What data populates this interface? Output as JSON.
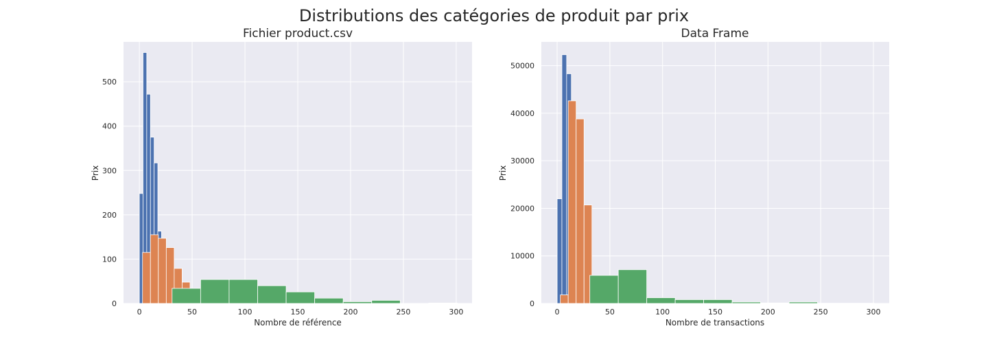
{
  "figure_title": "Distributions des catégories de produit par prix",
  "chart_data": [
    {
      "type": "bar",
      "title": "Fichier product.csv",
      "xlabel": "Nombre de référence",
      "ylabel": "Prix",
      "xlim": [
        -15,
        315
      ],
      "ylim": [
        0,
        590
      ],
      "xticks": [
        0,
        50,
        100,
        150,
        200,
        250,
        300
      ],
      "yticks": [
        0,
        100,
        200,
        300,
        400,
        500
      ],
      "grid": true,
      "series": [
        {
          "color": "#4c72b0",
          "bins": [
            {
              "x0": 0,
              "x1": 3.5,
              "value": 248
            },
            {
              "x0": 3.5,
              "x1": 7,
              "value": 566
            },
            {
              "x0": 7,
              "x1": 10.5,
              "value": 472
            },
            {
              "x0": 10.5,
              "x1": 14,
              "value": 375
            },
            {
              "x0": 14,
              "x1": 17.5,
              "value": 317
            },
            {
              "x0": 17.5,
              "x1": 21,
              "value": 163
            }
          ]
        },
        {
          "color": "#dd8452",
          "bins": [
            {
              "x0": 3,
              "x1": 10.5,
              "value": 115
            },
            {
              "x0": 10.5,
              "x1": 18,
              "value": 155
            },
            {
              "x0": 18,
              "x1": 25.5,
              "value": 147
            },
            {
              "x0": 25.5,
              "x1": 33,
              "value": 126
            },
            {
              "x0": 33,
              "x1": 40.5,
              "value": 79
            },
            {
              "x0": 40.5,
              "x1": 48,
              "value": 48
            },
            {
              "x0": 48,
              "x1": 55.5,
              "value": 25
            }
          ]
        },
        {
          "color": "#55a868",
          "bins": [
            {
              "x0": 31,
              "x1": 58,
              "value": 34
            },
            {
              "x0": 58,
              "x1": 85,
              "value": 54
            },
            {
              "x0": 85,
              "x1": 112,
              "value": 54
            },
            {
              "x0": 112,
              "x1": 139,
              "value": 40
            },
            {
              "x0": 139,
              "x1": 166,
              "value": 26
            },
            {
              "x0": 166,
              "x1": 193,
              "value": 12
            },
            {
              "x0": 193,
              "x1": 220,
              "value": 4
            },
            {
              "x0": 220,
              "x1": 247,
              "value": 7
            },
            {
              "x0": 247,
              "x1": 274,
              "value": 0
            },
            {
              "x0": 274,
              "x1": 301,
              "value": 1
            }
          ]
        }
      ]
    },
    {
      "type": "bar",
      "title": "Data Frame",
      "xlabel": "Nombre de transactions",
      "ylabel": "Prix",
      "xlim": [
        -15,
        315
      ],
      "ylim": [
        0,
        55000
      ],
      "xticks": [
        0,
        50,
        100,
        150,
        200,
        250,
        300
      ],
      "yticks": [
        0,
        10000,
        20000,
        30000,
        40000,
        50000
      ],
      "grid": true,
      "series": [
        {
          "color": "#4c72b0",
          "bins": [
            {
              "x0": 0,
              "x1": 4.5,
              "value": 22000
            },
            {
              "x0": 4.5,
              "x1": 9,
              "value": 52300
            },
            {
              "x0": 9,
              "x1": 13.5,
              "value": 48300
            }
          ]
        },
        {
          "color": "#dd8452",
          "bins": [
            {
              "x0": 3,
              "x1": 10.5,
              "value": 1800
            },
            {
              "x0": 10.5,
              "x1": 18,
              "value": 42600
            },
            {
              "x0": 18,
              "x1": 25.5,
              "value": 38800
            },
            {
              "x0": 25.5,
              "x1": 33,
              "value": 20700
            },
            {
              "x0": 33,
              "x1": 40.5,
              "value": 0
            }
          ]
        },
        {
          "color": "#55a868",
          "bins": [
            {
              "x0": 31,
              "x1": 58,
              "value": 5900
            },
            {
              "x0": 58,
              "x1": 85,
              "value": 7100
            },
            {
              "x0": 85,
              "x1": 112,
              "value": 1200
            },
            {
              "x0": 112,
              "x1": 139,
              "value": 800
            },
            {
              "x0": 139,
              "x1": 166,
              "value": 800
            },
            {
              "x0": 166,
              "x1": 193,
              "value": 300
            },
            {
              "x0": 193,
              "x1": 220,
              "value": 100
            },
            {
              "x0": 220,
              "x1": 247,
              "value": 300
            },
            {
              "x0": 247,
              "x1": 274,
              "value": 50
            },
            {
              "x0": 274,
              "x1": 301,
              "value": 50
            }
          ]
        }
      ]
    }
  ]
}
